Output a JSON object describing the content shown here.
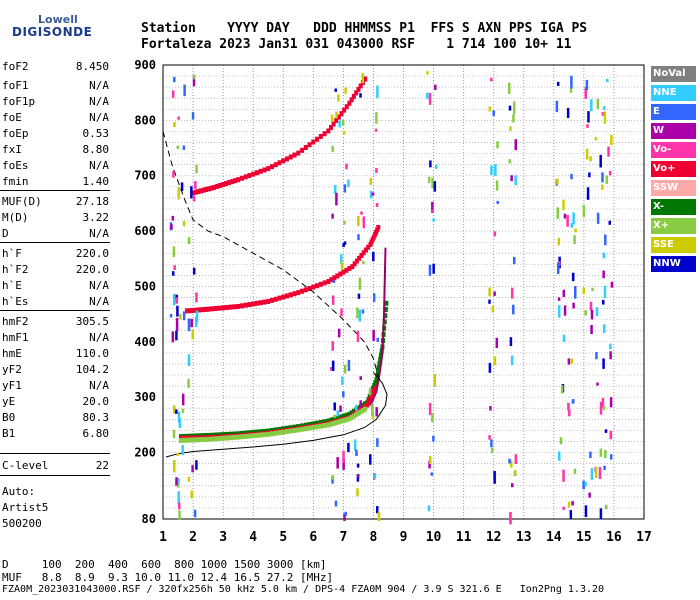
{
  "logo": {
    "top": "Lowell",
    "bottom": "DIGISONDE"
  },
  "header": {
    "line1": "Station    YYYY DAY   DDD HHMMSS P1  FFS S AXN PPS IGA PS",
    "line2": "Fortaleza 2023 Jan31 031 043000 RSF    1 714 100 10+ 11"
  },
  "params": [
    {
      "k": "foF2",
      "v": "8.450"
    },
    {
      "k": "foF1",
      "v": "N/A"
    },
    {
      "k": "foF1p",
      "v": "N/A"
    },
    {
      "k": "foE",
      "v": "N/A"
    },
    {
      "k": "foEp",
      "v": "0.53"
    },
    {
      "k": "fxI",
      "v": "8.80"
    },
    {
      "k": "foEs",
      "v": "N/A"
    },
    {
      "k": "fmin",
      "v": "1.40"
    },
    {
      "k": "MUF(D)",
      "v": "27.18"
    },
    {
      "k": "M(D)",
      "v": "3.22"
    },
    {
      "k": "D",
      "v": "N/A"
    },
    {
      "k": "h`F",
      "v": "220.0"
    },
    {
      "k": "h`F2",
      "v": "220.0"
    },
    {
      "k": "h`E",
      "v": "N/A"
    },
    {
      "k": "h`Es",
      "v": "N/A"
    },
    {
      "k": "hmF2",
      "v": "305.5"
    },
    {
      "k": "hmF1",
      "v": "N/A"
    },
    {
      "k": "hmE",
      "v": "110.0"
    },
    {
      "k": "yF2",
      "v": "104.2"
    },
    {
      "k": "yF1",
      "v": "N/A"
    },
    {
      "k": "yE",
      "v": "20.0"
    },
    {
      "k": "B0",
      "v": "80.3"
    },
    {
      "k": "B1",
      "v": "6.80"
    },
    {
      "k": "C-level",
      "v": "22"
    }
  ],
  "auto": [
    "Auto:",
    "Artist5",
    "500200"
  ],
  "legend": [
    {
      "label": "NoVal",
      "color": "#808080"
    },
    {
      "label": "NNE",
      "color": "#33ccff"
    },
    {
      "label": "E",
      "color": "#3366ff"
    },
    {
      "label": "W",
      "color": "#aa00aa"
    },
    {
      "label": "Vo-",
      "color": "#ff33aa"
    },
    {
      "label": "Vo+",
      "color": "#ee0033"
    },
    {
      "label": "SSW",
      "color": "#ffaaaa"
    },
    {
      "label": "X-",
      "color": "#007700"
    },
    {
      "label": "X+",
      "color": "#88cc44"
    },
    {
      "label": "SSE",
      "color": "#cccc00"
    },
    {
      "label": "NNW",
      "color": "#0000cc"
    }
  ],
  "footer": {
    "line1": "D     100  200  400  600  800 1000 1500 3000 [km]",
    "line2": "MUF   8.8  8.9  9.3 10.0 11.0 12.4 16.5 27.2 [MHz]",
    "line3": "FZA0M_2023031043000.RSF / 320fx256h 50 kHz 5.0 km / DPS-4 FZA0M 904 / 3.9 S 321.6 E   Ion2Png 1.3.20"
  },
  "chart_data": {
    "type": "scatter",
    "xlim": [
      1,
      17
    ],
    "ylim": [
      80,
      900
    ],
    "xticks": [
      1,
      2,
      3,
      4,
      5,
      6,
      7,
      8,
      9,
      10,
      11,
      12,
      13,
      14,
      15,
      16,
      17
    ],
    "yticks": [
      80,
      200,
      300,
      400,
      500,
      600,
      700,
      800,
      900
    ],
    "grid": true,
    "series": [
      {
        "name": "X-",
        "color": "#007700",
        "x": [
          1.6,
          2.5,
          3.5,
          4.5,
          5.5,
          6.5,
          7.2,
          7.8,
          8.1,
          8.3,
          8.45
        ],
        "y": [
          228,
          230,
          233,
          238,
          246,
          256,
          268,
          290,
          330,
          390,
          480
        ]
      },
      {
        "name": "Vo+",
        "color": "#ee0033",
        "x": [
          1.6,
          2.5,
          3.5,
          4.5,
          5.5,
          6.5,
          7.2,
          7.8,
          8.1
        ],
        "y": [
          225,
          226,
          229,
          234,
          242,
          251,
          262,
          285,
          320
        ]
      },
      {
        "name": "X+",
        "color": "#88cc44",
        "x": [
          1.6,
          2.5,
          3.5,
          4.5,
          5.5,
          6.5,
          7.2,
          7.8
        ],
        "y": [
          221,
          223,
          227,
          232,
          240,
          249,
          260,
          280
        ]
      },
      {
        "name": "Vo+",
        "color": "#ee0033",
        "x": [
          1.8,
          2.5,
          3.5,
          4.5,
          5.5,
          6.5,
          7.3,
          7.9,
          8.2
        ],
        "y": [
          455,
          458,
          463,
          472,
          488,
          508,
          535,
          575,
          610
        ]
      },
      {
        "name": "Vo+",
        "color": "#ee0033",
        "x": [
          2.0,
          2.7,
          3.5,
          4.5,
          5.5,
          6.5,
          7.2,
          7.8
        ],
        "y": [
          668,
          678,
          692,
          712,
          740,
          780,
          830,
          880
        ]
      }
    ],
    "profile": {
      "x": [
        1.1,
        1.5,
        2.0,
        3.0,
        4.0,
        5.0,
        6.0,
        7.0,
        7.7,
        8.1,
        8.4,
        8.45,
        8.3,
        8.0
      ],
      "y": [
        192,
        198,
        202,
        206,
        210,
        215,
        222,
        232,
        245,
        260,
        285,
        305,
        325,
        345
      ]
    },
    "dashed": {
      "x": [
        1.0,
        1.3,
        1.7,
        2.0,
        2.5,
        3.0,
        4.0,
        5.0,
        6.0,
        7.0,
        7.7,
        8.0,
        8.2
      ],
      "y": [
        780,
        720,
        660,
        620,
        600,
        590,
        560,
        530,
        490,
        440,
        400,
        370,
        330
      ]
    },
    "trace_bold": {
      "x": [
        7.9,
        8.1,
        8.2,
        8.3,
        8.35,
        8.4
      ],
      "y": [
        285,
        310,
        340,
        380,
        450,
        570
      ]
    }
  }
}
